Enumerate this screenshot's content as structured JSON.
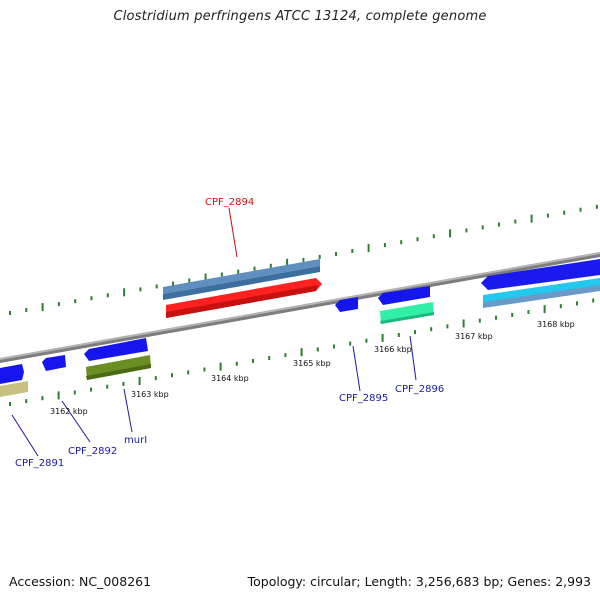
{
  "title": "Clostridium perfringens ATCC 13124, complete genome",
  "footer": {
    "accession": "Accession: NC_008261",
    "summary": "Topology: circular; Length: 3,256,683 bp; Genes: 2,993"
  },
  "colors": {
    "backbone": "#8a8a8a",
    "tick": "#2e7d32",
    "label_normal": "#1a1aa0",
    "label_highlight": "#d01010"
  },
  "scale_labels": [
    "3162 kbp",
    "3163 kbp",
    "3164 kbp",
    "3165 kbp",
    "3166 kbp",
    "3167 kbp",
    "3168 kbp"
  ],
  "genes": [
    {
      "name": "CPF_2891",
      "highlight": false
    },
    {
      "name": "CPF_2892",
      "highlight": false
    },
    {
      "name": "murI",
      "highlight": false
    },
    {
      "name": "CPF_2894",
      "highlight": true
    },
    {
      "name": "CPF_2895",
      "highlight": false
    },
    {
      "name": "CPF_2896",
      "highlight": false
    }
  ]
}
